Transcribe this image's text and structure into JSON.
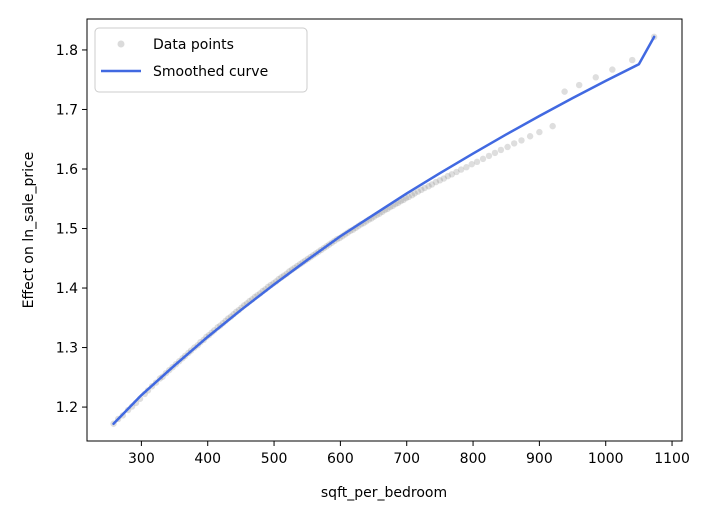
{
  "chart_data": {
    "type": "scatter",
    "title": "",
    "xlabel": "sqft_per_bedroom",
    "ylabel": "Effect on ln_sale_price",
    "xlim": [
      218,
      1115
    ],
    "ylim": [
      1.143,
      1.852
    ],
    "xticks": [
      300,
      400,
      500,
      600,
      700,
      800,
      900,
      1000,
      1100
    ],
    "yticks": [
      1.2,
      1.3,
      1.4,
      1.5,
      1.6,
      1.7,
      1.8
    ],
    "grid": false,
    "legend_position": "top-left",
    "legend": [
      "Data points",
      "Smoothed curve"
    ],
    "colors": {
      "points": "#888888",
      "curve": "#4169e1"
    },
    "series": [
      {
        "name": "Data points",
        "type": "scatter",
        "points": [
          [
            258,
            1.172
          ],
          [
            265,
            1.18
          ],
          [
            272,
            1.186
          ],
          [
            280,
            1.195
          ],
          [
            286,
            1.201
          ],
          [
            292,
            1.207
          ],
          [
            298,
            1.214
          ],
          [
            305,
            1.222
          ],
          [
            310,
            1.228
          ],
          [
            316,
            1.235
          ],
          [
            322,
            1.241
          ],
          [
            328,
            1.248
          ],
          [
            332,
            1.251
          ],
          [
            337,
            1.257
          ],
          [
            342,
            1.262
          ],
          [
            347,
            1.267
          ],
          [
            352,
            1.272
          ],
          [
            357,
            1.277
          ],
          [
            362,
            1.282
          ],
          [
            366,
            1.286
          ],
          [
            371,
            1.291
          ],
          [
            375,
            1.295
          ],
          [
            380,
            1.3
          ],
          [
            385,
            1.304
          ],
          [
            389,
            1.309
          ],
          [
            394,
            1.313
          ],
          [
            398,
            1.318
          ],
          [
            402,
            1.321
          ],
          [
            406,
            1.325
          ],
          [
            410,
            1.329
          ],
          [
            415,
            1.334
          ],
          [
            419,
            1.337
          ],
          [
            423,
            1.341
          ],
          [
            427,
            1.345
          ],
          [
            431,
            1.349
          ],
          [
            435,
            1.352
          ],
          [
            439,
            1.356
          ],
          [
            443,
            1.36
          ],
          [
            447,
            1.363
          ],
          [
            451,
            1.367
          ],
          [
            455,
            1.371
          ],
          [
            459,
            1.374
          ],
          [
            463,
            1.378
          ],
          [
            467,
            1.381
          ],
          [
            471,
            1.385
          ],
          [
            475,
            1.388
          ],
          [
            479,
            1.391
          ],
          [
            483,
            1.395
          ],
          [
            487,
            1.398
          ],
          [
            491,
            1.402
          ],
          [
            495,
            1.405
          ],
          [
            499,
            1.408
          ],
          [
            503,
            1.411
          ],
          [
            507,
            1.415
          ],
          [
            511,
            1.418
          ],
          [
            515,
            1.421
          ],
          [
            519,
            1.424
          ],
          [
            523,
            1.428
          ],
          [
            527,
            1.431
          ],
          [
            531,
            1.434
          ],
          [
            535,
            1.437
          ],
          [
            539,
            1.44
          ],
          [
            543,
            1.443
          ],
          [
            547,
            1.446
          ],
          [
            551,
            1.449
          ],
          [
            555,
            1.452
          ],
          [
            559,
            1.455
          ],
          [
            563,
            1.458
          ],
          [
            567,
            1.461
          ],
          [
            571,
            1.464
          ],
          [
            575,
            1.467
          ],
          [
            579,
            1.47
          ],
          [
            583,
            1.473
          ],
          [
            587,
            1.476
          ],
          [
            591,
            1.479
          ],
          [
            595,
            1.482
          ],
          [
            599,
            1.484
          ],
          [
            603,
            1.487
          ],
          [
            607,
            1.49
          ],
          [
            611,
            1.493
          ],
          [
            615,
            1.496
          ],
          [
            619,
            1.498
          ],
          [
            623,
            1.501
          ],
          [
            627,
            1.504
          ],
          [
            631,
            1.507
          ],
          [
            635,
            1.509
          ],
          [
            639,
            1.512
          ],
          [
            643,
            1.515
          ],
          [
            647,
            1.517
          ],
          [
            651,
            1.52
          ],
          [
            655,
            1.523
          ],
          [
            659,
            1.525
          ],
          [
            663,
            1.528
          ],
          [
            667,
            1.531
          ],
          [
            671,
            1.533
          ],
          [
            675,
            1.536
          ],
          [
            679,
            1.538
          ],
          [
            683,
            1.541
          ],
          [
            687,
            1.543
          ],
          [
            691,
            1.546
          ],
          [
            695,
            1.548
          ],
          [
            699,
            1.551
          ],
          [
            703,
            1.553
          ],
          [
            708,
            1.556
          ],
          [
            712,
            1.559
          ],
          [
            717,
            1.562
          ],
          [
            722,
            1.565
          ],
          [
            727,
            1.568
          ],
          [
            733,
            1.571
          ],
          [
            738,
            1.574
          ],
          [
            744,
            1.578
          ],
          [
            750,
            1.581
          ],
          [
            756,
            1.584
          ],
          [
            762,
            1.588
          ],
          [
            768,
            1.591
          ],
          [
            775,
            1.595
          ],
          [
            782,
            1.599
          ],
          [
            790,
            1.603
          ],
          [
            798,
            1.608
          ],
          [
            806,
            1.612
          ],
          [
            815,
            1.617
          ],
          [
            824,
            1.622
          ],
          [
            833,
            1.627
          ],
          [
            842,
            1.632
          ],
          [
            852,
            1.637
          ],
          [
            862,
            1.643
          ],
          [
            873,
            1.648
          ],
          [
            886,
            1.655
          ],
          [
            900,
            1.662
          ],
          [
            920,
            1.672
          ],
          [
            938,
            1.73
          ],
          [
            960,
            1.741
          ],
          [
            985,
            1.754
          ],
          [
            1010,
            1.767
          ],
          [
            1040,
            1.783
          ],
          [
            1073,
            1.822
          ]
        ]
      },
      {
        "name": "Smoothed curve",
        "type": "line",
        "points": [
          [
            258,
            1.172
          ],
          [
            300,
            1.22
          ],
          [
            350,
            1.27
          ],
          [
            400,
            1.318
          ],
          [
            450,
            1.363
          ],
          [
            500,
            1.406
          ],
          [
            550,
            1.447
          ],
          [
            600,
            1.487
          ],
          [
            650,
            1.523
          ],
          [
            700,
            1.559
          ],
          [
            750,
            1.593
          ],
          [
            800,
            1.626
          ],
          [
            850,
            1.658
          ],
          [
            900,
            1.689
          ],
          [
            950,
            1.719
          ],
          [
            1000,
            1.748
          ],
          [
            1050,
            1.776
          ],
          [
            1073,
            1.822
          ]
        ]
      }
    ]
  }
}
